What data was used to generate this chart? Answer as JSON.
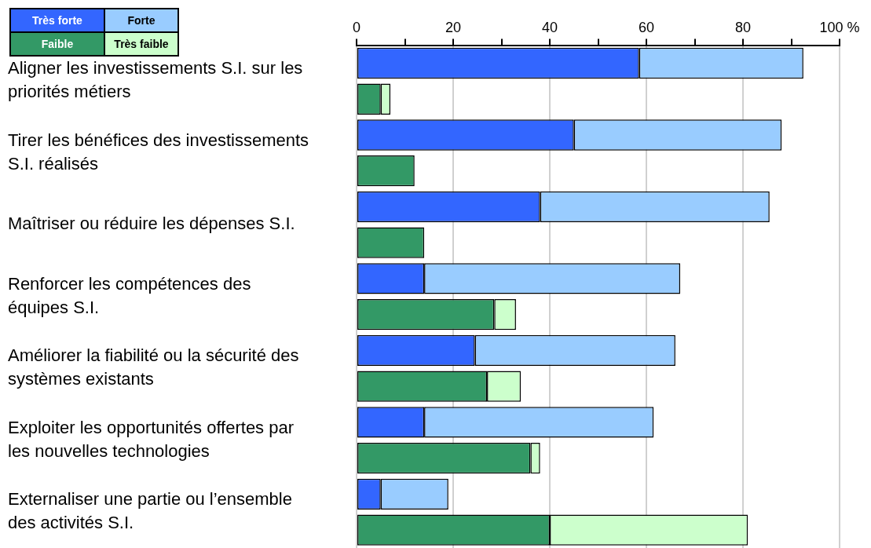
{
  "chart_data": {
    "type": "bar",
    "orientation": "horizontal",
    "stacked": true,
    "categories": [
      "Aligner les investissements S.I. sur les priorités métiers",
      null,
      "Tirer les bénéfices des investissements S.I. réalisés",
      null,
      "Maîtriser ou réduire les dépenses S.I.",
      null,
      "Renforcer les compétences des équipes S.I.",
      null,
      "Améliorer la fiabilité ou la sécurité des systèmes existants",
      null,
      "Exploiter les opportunités offertes par les nouvelles technologies",
      null,
      "Externaliser une partie ou l’ensemble des activités S.I.",
      null
    ],
    "series": [
      {
        "name": "Très forte",
        "color": "#3366ff",
        "values": [
          58.5,
          null,
          45,
          null,
          38,
          null,
          14,
          null,
          24.5,
          null,
          14,
          null,
          5,
          null
        ]
      },
      {
        "name": "Forte",
        "color": "#99ccff",
        "values": [
          34,
          null,
          43,
          null,
          47.5,
          null,
          53,
          null,
          41.5,
          null,
          47.5,
          null,
          14,
          null
        ]
      },
      {
        "name": "Faible",
        "color": "#339966",
        "values": [
          null,
          5,
          null,
          12,
          null,
          14,
          null,
          28.5,
          null,
          27,
          null,
          36,
          null,
          40
        ]
      },
      {
        "name": "Très faible",
        "color": "#ccffcc",
        "values": [
          null,
          2,
          null,
          0,
          null,
          0,
          null,
          4.5,
          null,
          7,
          null,
          2,
          null,
          41
        ]
      }
    ],
    "xlim": [
      0,
      100
    ],
    "xticks": [
      0,
      {
        "value": 10,
        "label": null
      },
      20,
      {
        "value": 30,
        "label": null
      },
      40,
      {
        "value": 50,
        "label": null
      },
      60,
      {
        "value": 70,
        "label": null
      },
      80,
      {
        "value": 90,
        "label": null
      },
      {
        "value": 100,
        "label": "100 %"
      }
    ],
    "grid": "x",
    "legend": "top left"
  }
}
